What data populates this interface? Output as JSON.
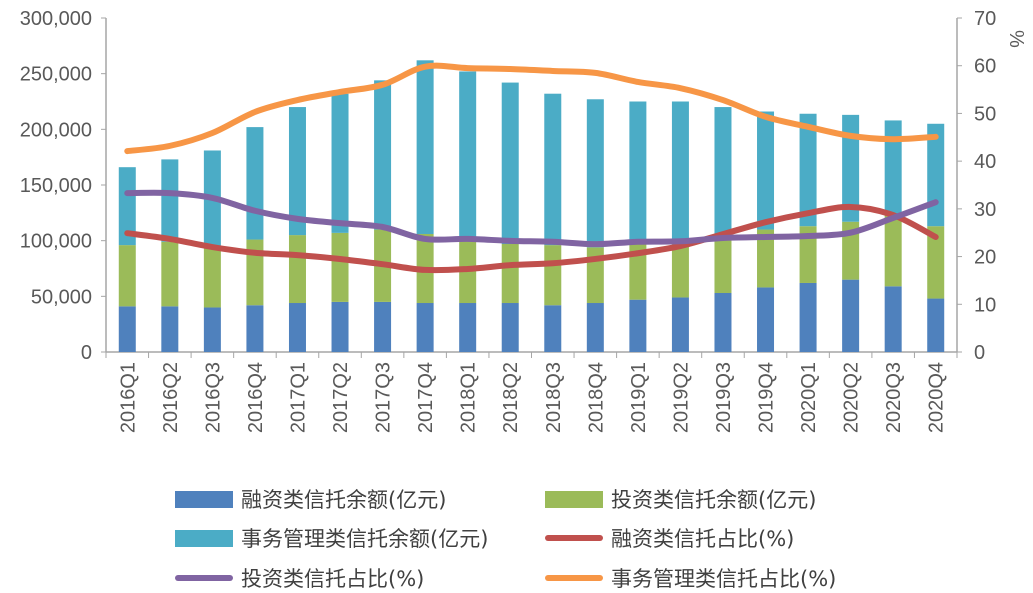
{
  "chart_data": {
    "type": "bar",
    "categories": [
      "2016Q1",
      "2016Q2",
      "2016Q3",
      "2016Q4",
      "2017Q1",
      "2017Q2",
      "2017Q3",
      "2017Q4",
      "2018Q1",
      "2018Q2",
      "2018Q3",
      "2018Q4",
      "2019Q1",
      "2019Q2",
      "2019Q3",
      "2019Q4",
      "2020Q1",
      "2020Q2",
      "2020Q3",
      "2020Q4"
    ],
    "y_left": {
      "range": [
        0,
        300000
      ],
      "ticks": [
        "0",
        "50,000",
        "100,000",
        "150,000",
        "200,000",
        "250,000",
        "300,000"
      ]
    },
    "y_right": {
      "label": "%",
      "range": [
        0,
        70
      ],
      "ticks": [
        "0",
        "10",
        "20",
        "30",
        "40",
        "50",
        "60",
        "70"
      ]
    },
    "bar_series": [
      {
        "name": "融资类信托余额(亿元)",
        "color": "#4f81bd",
        "values": [
          41000,
          41000,
          40000,
          42000,
          44000,
          45000,
          45000,
          44000,
          44000,
          44000,
          42000,
          44000,
          47000,
          49000,
          53000,
          58000,
          62000,
          65000,
          59000,
          48000
        ]
      },
      {
        "name": "投资类信托余额(亿元)",
        "color": "#9bbb59",
        "values": [
          55000,
          58000,
          53000,
          59000,
          61000,
          62000,
          65000,
          62000,
          56000,
          53000,
          54000,
          50000,
          52000,
          52000,
          52000,
          52000,
          51000,
          52000,
          64000,
          65000
        ]
      },
      {
        "name": "事务管理类信托余额(亿元)",
        "color": "#4bacc6",
        "values": [
          70000,
          74000,
          88000,
          101000,
          115000,
          125000,
          134000,
          156000,
          152000,
          145000,
          136000,
          133000,
          126000,
          124000,
          115000,
          106000,
          101000,
          96000,
          85000,
          92000
        ]
      }
    ],
    "line_series": [
      {
        "name": "融资类信托占比(%)",
        "color": "#c0504d",
        "values": [
          24.9,
          23.7,
          22.0,
          20.8,
          20.3,
          19.5,
          18.4,
          17.2,
          17.4,
          18.2,
          18.6,
          19.5,
          20.7,
          22.2,
          24.7,
          27.2,
          29.1,
          30.4,
          28.7,
          24.1
        ]
      },
      {
        "name": "投资类信托占比(%)",
        "color": "#8064a2",
        "values": [
          33.3,
          33.3,
          32.3,
          29.6,
          27.9,
          27.0,
          26.2,
          23.7,
          23.7,
          23.3,
          23.1,
          22.6,
          23.1,
          23.2,
          23.9,
          24.1,
          24.3,
          25.0,
          28.1,
          31.4
        ]
      },
      {
        "name": "事务管理类信托占比(%)",
        "color": "#f79646",
        "values": [
          42.1,
          43.2,
          45.9,
          50.3,
          52.8,
          54.5,
          56.0,
          59.8,
          59.5,
          59.3,
          58.9,
          58.5,
          56.6,
          55.3,
          52.8,
          49.3,
          47.2,
          45.3,
          44.6,
          45.1
        ]
      }
    ],
    "stacked": true,
    "grid": false,
    "legend_position": "bottom"
  }
}
